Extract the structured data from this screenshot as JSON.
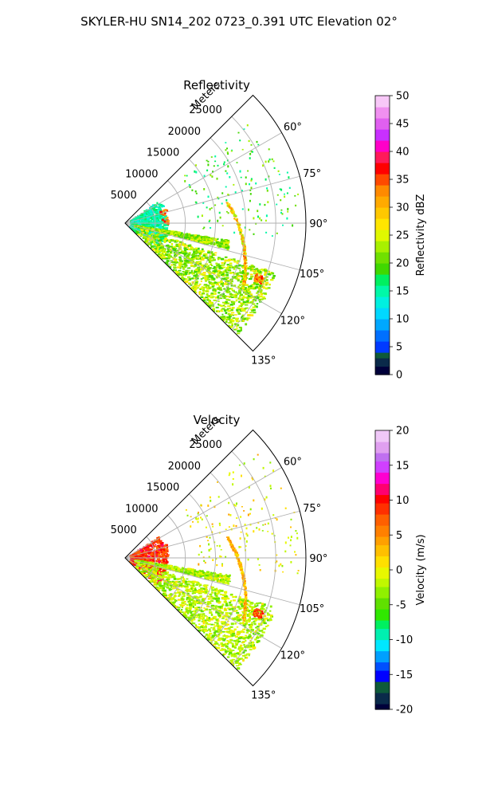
{
  "figure": {
    "suptitle": "SKYLER-HU  SN14_202  0723_0.391 UTC Elevation 02°"
  },
  "chart_data": [
    {
      "type": "radar-ppi",
      "title": "Reflectivity",
      "radial_label": "Meters",
      "range_ticks": [
        "5000",
        "10000",
        "15000",
        "20000",
        "25000"
      ],
      "range_values": [
        5000,
        10000,
        15000,
        20000,
        25000
      ],
      "rmax": 30000,
      "azimuth_range_deg": [
        45,
        135
      ],
      "azimuth_ticks": [
        "60°",
        "75°",
        "90°",
        "105°",
        "120°",
        "135°"
      ],
      "azimuth_values": [
        60,
        75,
        90,
        105,
        120,
        135
      ],
      "grid": true,
      "colorbar": {
        "label": "Reflectivity dBZ",
        "vmin": 0,
        "vmax": 50,
        "ticks": [
          "0",
          "5",
          "10",
          "15",
          "20",
          "25",
          "30",
          "35",
          "40",
          "45",
          "50"
        ],
        "tick_values": [
          0,
          5,
          10,
          15,
          20,
          25,
          30,
          35,
          40,
          45,
          50
        ],
        "colormap": "pyart_NWSRef"
      }
    },
    {
      "type": "radar-ppi",
      "title": "Velocity",
      "radial_label": "Meters",
      "range_ticks": [
        "5000",
        "10000",
        "15000",
        "20000",
        "25000"
      ],
      "range_values": [
        5000,
        10000,
        15000,
        20000,
        25000
      ],
      "rmax": 30000,
      "azimuth_range_deg": [
        45,
        135
      ],
      "azimuth_ticks": [
        "60°",
        "75°",
        "90°",
        "105°",
        "120°",
        "135°"
      ],
      "azimuth_values": [
        60,
        75,
        90,
        105,
        120,
        135
      ],
      "grid": true,
      "colorbar": {
        "label": "Velocity (m/s)",
        "vmin": -20,
        "vmax": 20,
        "ticks": [
          "-20",
          "-15",
          "-10",
          "-5",
          "0",
          "5",
          "10",
          "15",
          "20"
        ],
        "tick_values": [
          -20,
          -15,
          -10,
          -5,
          0,
          5,
          10,
          15,
          20
        ],
        "colormap": "pyart_BuDRd18"
      }
    }
  ]
}
